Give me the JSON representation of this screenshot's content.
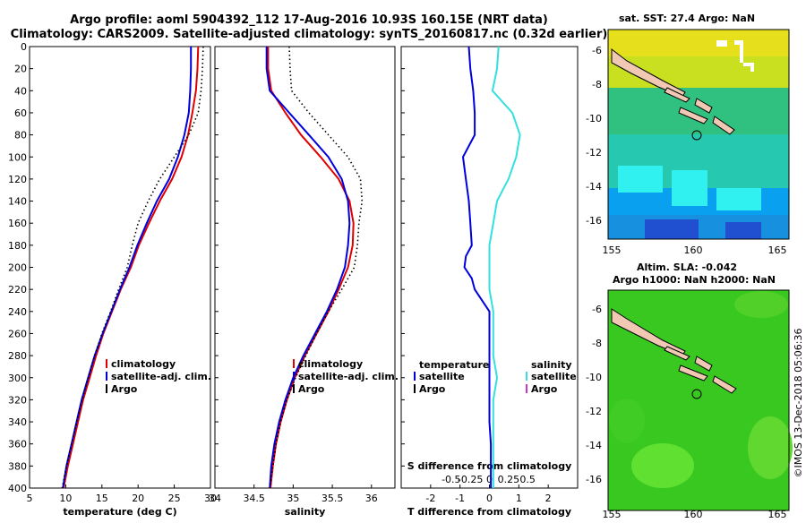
{
  "header": {
    "title_line1": "Argo profile: aoml 5904392_112 17-Aug-2016 10.93S 160.15E (NRT data)",
    "title_line2": "Climatology: CARS2009. Satellite-adjusted climatology: synTS_20160817.nc (0.32d earlier)"
  },
  "watermark": "©IMOS 13-Dec-2018 05:06:36",
  "colors": {
    "climatology": "#e00000",
    "satellite": "#0000dd",
    "argo": "#000000",
    "salinity_sat": "#33e0e0",
    "salinity_argo": "#cc33cc"
  },
  "chart_data": [
    {
      "type": "line",
      "xlabel": "temperature (deg C)",
      "ylabel": "depth",
      "xlim": [
        5,
        30
      ],
      "ylim": [
        0,
        400
      ],
      "xticks": [
        "5",
        "10",
        "15",
        "20",
        "25",
        "30"
      ],
      "yticks": [
        "0",
        "20",
        "40",
        "60",
        "80",
        "100",
        "120",
        "140",
        "160",
        "180",
        "200",
        "220",
        "240",
        "260",
        "280",
        "300",
        "320",
        "340",
        "360",
        "380",
        "400"
      ],
      "legend": [
        "climatology",
        "satellite-adj. clim.",
        "Argo"
      ],
      "series": [
        {
          "name": "climatology",
          "color": "#e00000",
          "depth": [
            0,
            20,
            40,
            60,
            80,
            100,
            120,
            140,
            160,
            180,
            200,
            220,
            240,
            260,
            280,
            300,
            320,
            340,
            360,
            380,
            400
          ],
          "values": [
            28.3,
            28.2,
            28.0,
            27.5,
            26.9,
            26.0,
            24.7,
            23.0,
            21.5,
            20.1,
            19.0,
            17.6,
            16.4,
            15.2,
            14.2,
            13.3,
            12.4,
            11.7,
            11.0,
            10.3,
            9.7
          ]
        },
        {
          "name": "satellite-adj. clim.",
          "color": "#0000dd",
          "depth": [
            0,
            20,
            40,
            60,
            80,
            100,
            120,
            140,
            160,
            180,
            200,
            220,
            240,
            260,
            280,
            300,
            320,
            340,
            360,
            380,
            400
          ],
          "values": [
            27.3,
            27.3,
            27.2,
            27.0,
            26.4,
            25.5,
            24.3,
            22.6,
            21.2,
            19.9,
            18.8,
            17.5,
            16.3,
            15.1,
            14.0,
            13.1,
            12.2,
            11.5,
            10.8,
            10.1,
            9.6
          ]
        },
        {
          "name": "Argo",
          "color": "#000000",
          "depth": [
            0,
            20,
            40,
            60,
            80,
            100,
            120,
            140,
            160,
            180,
            200,
            220,
            240,
            260,
            280,
            300,
            320,
            340,
            360,
            380,
            400
          ],
          "values": [
            29.0,
            28.9,
            28.7,
            28.3,
            27.0,
            25.0,
            23.0,
            21.4,
            20.0,
            19.2,
            18.5,
            17.3,
            16.2,
            15.0,
            14.0,
            13.1,
            12.3,
            11.5,
            10.8,
            10.1,
            9.5
          ]
        }
      ]
    },
    {
      "type": "line",
      "xlabel": "salinity",
      "ylabel": "depth",
      "xlim": [
        34,
        36.3
      ],
      "ylim": [
        0,
        400
      ],
      "xticks": [
        "34",
        "34.5",
        "35",
        "35.5",
        "36"
      ],
      "legend": [
        "climatology",
        "satellite-adj. clim.",
        "Argo"
      ],
      "series": [
        {
          "name": "climatology",
          "color": "#e00000",
          "depth": [
            0,
            20,
            40,
            60,
            80,
            100,
            120,
            140,
            160,
            180,
            200,
            220,
            240,
            260,
            280,
            300,
            320,
            340,
            360,
            380,
            400
          ],
          "values": [
            34.68,
            34.68,
            34.72,
            34.9,
            35.1,
            35.35,
            35.58,
            35.72,
            35.77,
            35.76,
            35.7,
            35.58,
            35.45,
            35.3,
            35.15,
            35.02,
            34.92,
            34.84,
            34.78,
            34.74,
            34.71
          ]
        },
        {
          "name": "satellite-adj. clim.",
          "color": "#0000dd",
          "depth": [
            0,
            20,
            40,
            60,
            80,
            100,
            120,
            140,
            160,
            180,
            200,
            220,
            240,
            260,
            280,
            300,
            320,
            340,
            360,
            380,
            400
          ],
          "values": [
            34.66,
            34.66,
            34.7,
            34.95,
            35.2,
            35.45,
            35.62,
            35.7,
            35.72,
            35.7,
            35.66,
            35.56,
            35.43,
            35.28,
            35.13,
            35.0,
            34.9,
            34.82,
            34.76,
            34.72,
            34.7
          ]
        },
        {
          "name": "Argo",
          "color": "#000000",
          "depth": [
            0,
            20,
            40,
            60,
            80,
            100,
            120,
            140,
            160,
            180,
            200,
            220,
            240,
            260,
            280,
            300,
            320,
            340,
            360,
            380,
            400
          ],
          "values": [
            34.95,
            34.96,
            34.98,
            35.2,
            35.45,
            35.7,
            35.86,
            35.88,
            35.84,
            35.82,
            35.78,
            35.62,
            35.45,
            35.3,
            35.16,
            35.03,
            34.92,
            34.84,
            34.78,
            34.74,
            34.7
          ]
        }
      ]
    },
    {
      "type": "line",
      "xlabel": "T difference from climatology",
      "xlabel_top": "S difference from climatology",
      "ylabel": "depth",
      "xlim": [
        -3,
        3
      ],
      "ylim": [
        0,
        400
      ],
      "xticks": [
        "-2",
        "-1",
        "0",
        "1",
        "2"
      ],
      "xticks_top": [
        "-0.5",
        "-0.25",
        "0",
        "0.25",
        "0.5"
      ],
      "legend_left_title": "temperature",
      "legend_left": [
        "satellite",
        "Argo"
      ],
      "legend_right_title": "salinity",
      "legend_right": [
        "satellite",
        "Argo"
      ],
      "series": [
        {
          "name": "temperature satellite",
          "color": "#0000dd",
          "depth": [
            0,
            20,
            40,
            60,
            80,
            100,
            120,
            140,
            160,
            180,
            190,
            200,
            210,
            220,
            240,
            260,
            280,
            300,
            320,
            340,
            360,
            380,
            400
          ],
          "values": [
            -0.7,
            -0.65,
            -0.55,
            -0.5,
            -0.5,
            -0.9,
            -0.8,
            -0.7,
            -0.65,
            -0.6,
            -0.8,
            -0.85,
            -0.6,
            -0.5,
            0.0,
            0.0,
            0.0,
            0.0,
            0.0,
            0.0,
            0.05,
            0.05,
            0.05
          ]
        },
        {
          "name": "salinity satellite",
          "color": "#33e0e0",
          "depth": [
            0,
            20,
            40,
            60,
            80,
            100,
            120,
            140,
            160,
            180,
            200,
            220,
            240,
            260,
            280,
            300,
            320,
            340,
            360,
            380,
            400
          ],
          "values": [
            0.12,
            0.1,
            0.04,
            0.3,
            0.4,
            0.35,
            0.25,
            0.1,
            0.05,
            0.0,
            0.0,
            0.0,
            0.05,
            0.05,
            0.05,
            0.1,
            0.05,
            0.05,
            0.05,
            0.05,
            0.05
          ]
        }
      ]
    }
  ],
  "maps": [
    {
      "title": "sat. SST: 27.4 Argo: NaN",
      "yticks": [
        "-6",
        "-8",
        "-10",
        "-12",
        "-14",
        "-16"
      ],
      "xticks": [
        "155",
        "160",
        "165"
      ]
    },
    {
      "title_line1": "Altim. SLA: -0.042",
      "title_line2": "Argo h1000: NaN h2000: NaN",
      "yticks": [
        "-6",
        "-8",
        "-10",
        "-12",
        "-14",
        "-16"
      ],
      "xticks": [
        "155",
        "160",
        "165"
      ]
    }
  ]
}
